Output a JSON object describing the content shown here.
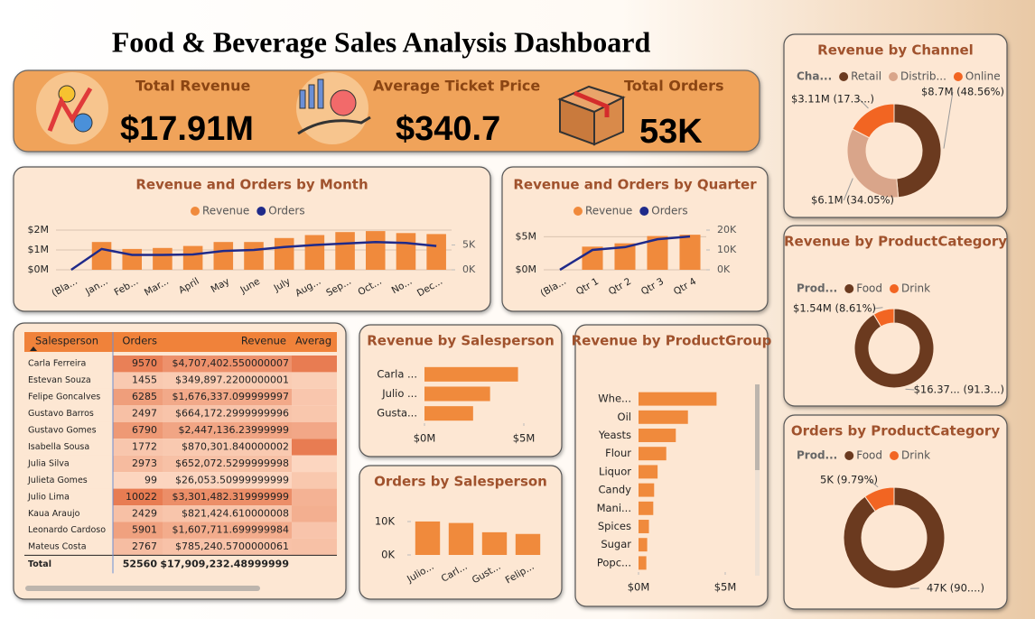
{
  "title": "Food & Beverage Sales Analysis Dashboard",
  "kpis": [
    {
      "label": "Total Revenue",
      "value": "$17.91M"
    },
    {
      "label": "Average Ticket Price",
      "value": "$340.7"
    },
    {
      "label": "Total Orders",
      "value": "53K"
    }
  ],
  "table": {
    "columns": [
      "Salesperson",
      "Orders",
      "Revenue",
      "Averag"
    ],
    "rows": [
      [
        "Carla Ferreira",
        9570,
        "$4,707,402.550000007"
      ],
      [
        "Estevan Souza",
        1455,
        "$349,897.2200000001"
      ],
      [
        "Felipe Goncalves",
        6285,
        "$1,676,337.099999997"
      ],
      [
        "Gustavo Barros",
        2497,
        "$664,172.2999999996"
      ],
      [
        "Gustavo Gomes",
        6790,
        "$2,447,136.23999999"
      ],
      [
        "Isabella Sousa",
        1772,
        "$870,301.840000002"
      ],
      [
        "Julia Silva",
        2973,
        "$652,072.5299999998"
      ],
      [
        "Julieta Gomes",
        99,
        "$26,053.50999999999"
      ],
      [
        "Julio Lima",
        10022,
        "$3,301,482.319999999"
      ],
      [
        "Kaua Araujo",
        2429,
        "$821,424.610000008"
      ],
      [
        "Leonardo Cardoso",
        5901,
        "$1,607,711.699999984"
      ],
      [
        "Mateus Costa",
        2767,
        "$785,240.5700000061"
      ]
    ],
    "total": [
      "Total",
      52560,
      "$17,909,232.48999999"
    ]
  },
  "chart_data": [
    {
      "type": "combo",
      "title": "Revenue and Orders by Month",
      "categories": [
        "(Bla...",
        "Jan...",
        "Feb...",
        "Mar...",
        "April",
        "May",
        "June",
        "July",
        "Aug...",
        "Sep...",
        "Oct...",
        "No...",
        "Dec..."
      ],
      "series": [
        {
          "name": "Revenue",
          "color": "#f08a3c",
          "kind": "bar",
          "values": [
            null,
            1400000,
            1050000,
            1100000,
            1200000,
            1400000,
            1400000,
            1600000,
            1750000,
            1900000,
            1950000,
            1850000,
            1800000
          ]
        },
        {
          "name": "Orders",
          "color": "#1f2a8a",
          "kind": "line",
          "axis": "y2",
          "values": [
            0,
            4200,
            3000,
            3000,
            3100,
            3800,
            4000,
            4600,
            5000,
            5300,
            5600,
            5400,
            4800
          ]
        }
      ],
      "ylim": [
        0,
        2000000
      ],
      "yticks": [
        {
          "value": 0,
          "label": "$0M"
        },
        {
          "value": 1000000,
          "label": "$1M"
        },
        {
          "value": 2000000,
          "label": "$2M"
        }
      ],
      "y2lim": [
        0,
        8000
      ],
      "y2ticks": [
        {
          "value": 0,
          "label": "0K"
        },
        {
          "value": 5000,
          "label": "5K"
        }
      ],
      "grid": true
    },
    {
      "type": "combo",
      "title": "Revenue and Orders by Quarter",
      "categories": [
        "(Bla...",
        "Qtr 1",
        "Qtr 2",
        "Qtr 3",
        "Qtr 4"
      ],
      "series": [
        {
          "name": "Revenue",
          "color": "#f08a3c",
          "kind": "bar",
          "values": [
            null,
            3500000,
            4000000,
            5100000,
            5300000
          ]
        },
        {
          "name": "Orders",
          "color": "#1f2a8a",
          "kind": "line",
          "axis": "y2",
          "values": [
            0,
            10000,
            11400,
            15400,
            16800
          ]
        }
      ],
      "ylim": [
        0,
        6000000
      ],
      "yticks": [
        {
          "value": 0,
          "label": "$0M"
        },
        {
          "value": 5000000,
          "label": "$5M"
        }
      ],
      "y2lim": [
        0,
        20000
      ],
      "y2ticks": [
        {
          "value": 0,
          "label": "0K"
        },
        {
          "value": 10000,
          "label": "10K"
        },
        {
          "value": 20000,
          "label": "20K"
        }
      ],
      "grid": true
    },
    {
      "type": "donut",
      "title": "Revenue by Channel",
      "legend_title": "Cha...",
      "categories": [
        "Retail",
        "Distrib...",
        "Online"
      ],
      "values": [
        8700000,
        6100000,
        3110000
      ],
      "value_labels": [
        "$8.7M (48.56%)",
        "$6.1M (34.05%)",
        "$3.11M (17.3...)"
      ],
      "colors": [
        "#6b3a1f",
        "#d9a58a",
        "#f26522"
      ]
    },
    {
      "type": "donut",
      "title": "Revenue by ProductCategory",
      "legend_title": "Prod...",
      "categories": [
        "Food",
        "Drink"
      ],
      "values": [
        16370000,
        1540000
      ],
      "value_labels": [
        "$16.37... (91.3...)",
        "$1.54M (8.61%)"
      ],
      "colors": [
        "#6b3a1f",
        "#f26522"
      ]
    },
    {
      "type": "donut",
      "title": "Orders by ProductCategory",
      "legend_title": "Prod...",
      "categories": [
        "Food",
        "Drink"
      ],
      "values": [
        47420,
        5140
      ],
      "value_labels": [
        "47K (90....)",
        "5K (9.79%)"
      ],
      "colors": [
        "#6b3a1f",
        "#f26522"
      ]
    },
    {
      "type": "hbar",
      "title": "Revenue by Salesperson",
      "categories": [
        "Carla ...",
        "Julio ...",
        "Gusta..."
      ],
      "values": [
        4707402.55,
        3301482.32,
        2447136.24
      ],
      "color": "#f08a3c",
      "xlim": [
        0,
        5000000
      ],
      "xticks": [
        {
          "value": 0,
          "label": "$0M"
        },
        {
          "value": 5000000,
          "label": "$5M"
        }
      ]
    },
    {
      "type": "bar",
      "title": "Orders by Salesperson",
      "categories": [
        "Julio...",
        "Carl...",
        "Gust...",
        "Felip..."
      ],
      "values": [
        10022,
        9570,
        6790,
        6285
      ],
      "color": "#f08a3c",
      "ylim": [
        0,
        10000
      ],
      "yticks": [
        {
          "value": 0,
          "label": "0K"
        },
        {
          "value": 10000,
          "label": "10K"
        }
      ]
    },
    {
      "type": "hbar",
      "title": "Revenue by ProductGroup",
      "categories": [
        "Whe...",
        "Oil",
        "Yeasts",
        "Flour",
        "Liquor",
        "Candy",
        "Mani...",
        "Spices",
        "Sugar",
        "Popc..."
      ],
      "values": [
        4500000,
        2850000,
        2150000,
        1600000,
        1100000,
        900000,
        850000,
        600000,
        500000,
        450000
      ],
      "color": "#f08a3c",
      "xlim": [
        0,
        5000000
      ],
      "xticks": [
        {
          "value": 0,
          "label": "$0M"
        },
        {
          "value": 5000000,
          "label": "$5M"
        }
      ]
    }
  ]
}
